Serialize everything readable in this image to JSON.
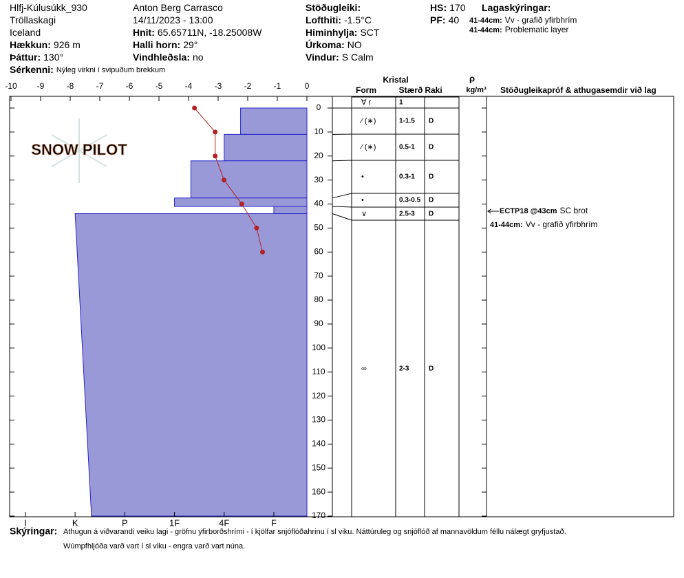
{
  "header": {
    "columns": [
      {
        "items": [
          {
            "value": "Hlfj-Kúlusúkk_930"
          },
          {
            "value": "Tröllaskagi"
          },
          {
            "value": "Iceland"
          },
          {
            "label": "Hækkun:",
            "value": "926 m"
          },
          {
            "label": "Þáttur:",
            "value": "130°"
          }
        ]
      },
      {
        "items": [
          {
            "value": "Anton Berg Carrasco"
          },
          {
            "value": "14/11/2023 - 13:00"
          },
          {
            "label": "Hnit:",
            "value": "65.65711N, -18.25008W"
          },
          {
            "label": "Halli horn:",
            "value": "29°"
          },
          {
            "label": "Vindhleðsla:",
            "value": "no"
          }
        ]
      },
      {
        "items": [
          {
            "label": "Stöðugleiki:"
          },
          {
            "label": "Lofthiti:",
            "value": "-1.5°C"
          },
          {
            "label": "Himinhylja:",
            "value": "SCT"
          },
          {
            "label": "Úrkoma:",
            "value": "NO"
          },
          {
            "label": "Vindur:",
            "value": "S Calm"
          }
        ]
      },
      {
        "items": [
          {
            "label": "HS:",
            "value": "170"
          },
          {
            "label": "PF:",
            "value": "40"
          }
        ]
      },
      {
        "items": [
          {
            "label": "Lagaskýringar:"
          },
          {
            "label": "41-44cm:",
            "value": "Vv - grafið yfirbhrím"
          },
          {
            "label": "41-44cm:",
            "value": "Problematic layer"
          }
        ]
      }
    ],
    "features": {
      "label": "Sérkenni:",
      "value": "Nýleg virkni í svipuðum brekkum"
    }
  },
  "logo": "SNOW PILOT",
  "chart_data": {
    "type": "snow_profile",
    "xlim": [
      -10,
      0
    ],
    "xticks": [
      -10,
      -9,
      -8,
      -7,
      -6,
      -5,
      -4,
      -3,
      -2,
      -1,
      0
    ],
    "ylim": [
      0,
      170
    ],
    "yticks": [
      0,
      10,
      20,
      30,
      40,
      50,
      60,
      70,
      80,
      90,
      100,
      110,
      120,
      130,
      140,
      150,
      160,
      170
    ],
    "temperature": {
      "color": "#b22222",
      "depth": [
        0,
        10,
        20,
        30,
        40,
        50,
        60
      ],
      "values": [
        -3.8,
        -3.1,
        -3.1,
        -2.8,
        -2.2,
        -1.7,
        -1.5
      ]
    },
    "hardness": {
      "color": "#9999d8",
      "xlim": [
        6.29,
        0.335
      ],
      "xticks": [
        {
          "value": 6,
          "label": "I"
        },
        {
          "value": 5,
          "label": "K"
        },
        {
          "value": 4,
          "label": "P"
        },
        {
          "value": 3,
          "label": "1F"
        },
        {
          "value": 2,
          "label": "4F"
        },
        {
          "value": 1,
          "label": "F"
        }
      ],
      "layers": [
        {
          "top": 0,
          "bottom": 11,
          "hardness_top": 1.67,
          "hardness_bottom": 1.67
        },
        {
          "top": 11,
          "bottom": 22,
          "hardness_top": 2,
          "hardness_bottom": 2
        },
        {
          "top": 22,
          "bottom": 37.5,
          "hardness_top": 2.67,
          "hardness_bottom": 2.67
        },
        {
          "top": 37.5,
          "bottom": 41,
          "hardness_top": 3,
          "hardness_bottom": 3
        },
        {
          "top": 41,
          "bottom": 44,
          "hardness_top": 1,
          "hardness_bottom": 1
        },
        {
          "top": 44,
          "bottom": 170,
          "hardness_top": 5,
          "hardness_bottom": 4.67
        }
      ]
    }
  },
  "crystals": {
    "title": "Kristal",
    "columns": [
      "Form",
      "Stærð",
      "Raki"
    ],
    "rows": [
      {
        "form": "∀ r",
        "size": "1"
      },
      {
        "form": "∕ (∗)",
        "size": "1-1.5",
        "moisture": "D"
      },
      {
        "form": "∕ (∗)",
        "size": "0.5-1",
        "moisture": "D"
      },
      {
        "form": "•",
        "size": "0.3-1",
        "moisture": "D"
      },
      {
        "form": "•",
        "size": "0.3-0.5",
        "moisture": "D"
      },
      {
        "form": "∨",
        "size": "2.5-3",
        "moisture": "D"
      },
      {
        "form": "∞",
        "size": "2-3",
        "moisture": "D"
      }
    ]
  },
  "density": {
    "symbol": "ρ",
    "unit": "kg/m³"
  },
  "notes": {
    "title": "Stöðugleikapróf & athugasemdir við lag",
    "test": {
      "label": "ECTP18 @43cm",
      "value": "SC brot"
    },
    "comment": {
      "label": "41-44cm:",
      "value": "Vv - grafið yfirbhrím"
    }
  },
  "footer": {
    "label": "Skýringar:",
    "lines": [
      "Athugun á viðvarandi veiku lagi - gröfnu yfirborðshrími -   í kjölfar snjóflóðahrinu í sl viku. Náttúruleg og snjóflóð af mannavöldum féllu nálægt gryfjustað.",
      "Wúmpfhljóða varð vart í sl viku - engra varð vart núna."
    ]
  }
}
